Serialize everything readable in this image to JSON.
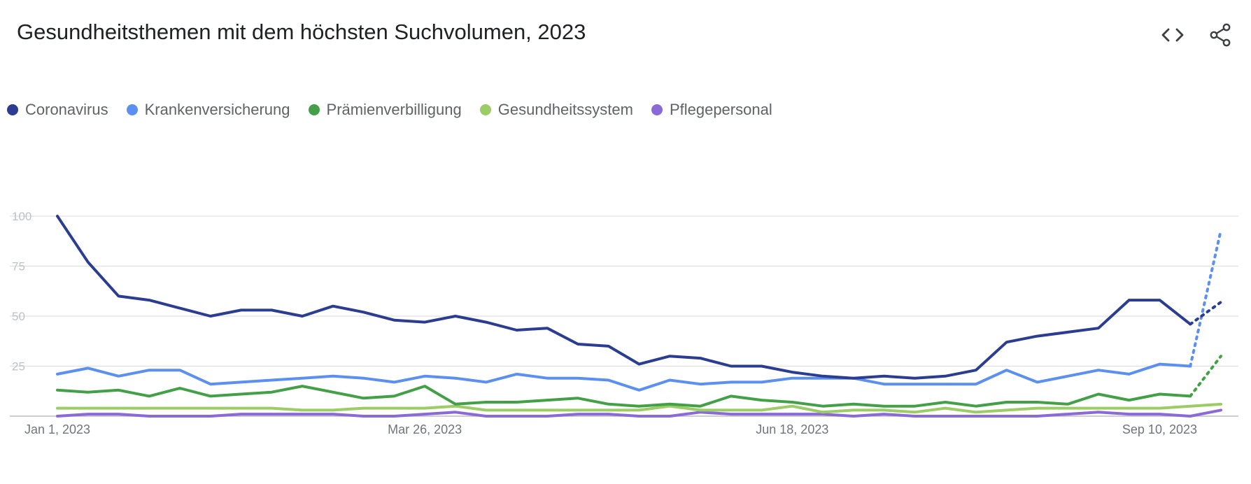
{
  "header": {
    "title": "Gesundheitsthemen mit dem höchsten Suchvolumen, 2023",
    "embed_icon": "code-icon",
    "share_icon": "share-icon"
  },
  "chart_data": {
    "type": "line",
    "title": "Gesundheitsthemen mit dem höchsten Suchvolumen, 2023",
    "xlabel": "",
    "ylabel": "",
    "ylim": [
      0,
      100
    ],
    "yticks": [
      "0",
      "25",
      "50",
      "75",
      "100"
    ],
    "xticks": [
      "Jan 1, 2023",
      "Mar 26, 2023",
      "Jun 18, 2023",
      "Sep 10, 2023"
    ],
    "xtick_weeks": [
      0,
      12,
      24,
      36
    ],
    "grid": true,
    "legend_position": "top-left",
    "weeks": 39,
    "partial_last_week": true,
    "series": [
      {
        "name": "Coronavirus",
        "color": "#2b3d91",
        "values": [
          100,
          77,
          60,
          58,
          54,
          50,
          53,
          53,
          50,
          55,
          52,
          48,
          47,
          50,
          47,
          43,
          44,
          36,
          35,
          26,
          30,
          29,
          25,
          25,
          22,
          20,
          19,
          20,
          19,
          20,
          23,
          37,
          40,
          42,
          44,
          58,
          58,
          46,
          57
        ]
      },
      {
        "name": "Krankenversicherung",
        "color": "#5b8ff0",
        "values": [
          21,
          24,
          20,
          23,
          23,
          16,
          17,
          18,
          19,
          20,
          19,
          17,
          20,
          19,
          17,
          21,
          19,
          19,
          18,
          13,
          18,
          16,
          17,
          17,
          19,
          19,
          19,
          16,
          16,
          16,
          16,
          23,
          17,
          20,
          23,
          21,
          26,
          25,
          93
        ]
      },
      {
        "name": "Prämienverbilligung",
        "color": "#43a047",
        "values": [
          13,
          12,
          13,
          10,
          14,
          10,
          11,
          12,
          15,
          12,
          9,
          10,
          15,
          6,
          7,
          7,
          8,
          9,
          6,
          5,
          6,
          5,
          10,
          8,
          7,
          5,
          6,
          5,
          5,
          7,
          5,
          7,
          7,
          6,
          11,
          8,
          11,
          10,
          30
        ]
      },
      {
        "name": "Gesundheitssystem",
        "color": "#9ccc65",
        "values": [
          4,
          4,
          4,
          4,
          4,
          4,
          4,
          4,
          3,
          3,
          4,
          4,
          4,
          5,
          3,
          3,
          3,
          3,
          3,
          3,
          5,
          3,
          3,
          3,
          5,
          2,
          3,
          3,
          2,
          4,
          2,
          3,
          4,
          4,
          4,
          4,
          4,
          5,
          6
        ]
      },
      {
        "name": "Pflegepersonal",
        "color": "#8a6ad6",
        "values": [
          0,
          1,
          1,
          0,
          0,
          0,
          1,
          1,
          1,
          1,
          0,
          0,
          1,
          2,
          0,
          0,
          0,
          1,
          1,
          0,
          0,
          2,
          1,
          1,
          1,
          1,
          0,
          1,
          0,
          0,
          0,
          0,
          0,
          1,
          2,
          1,
          1,
          0,
          3
        ]
      }
    ]
  }
}
